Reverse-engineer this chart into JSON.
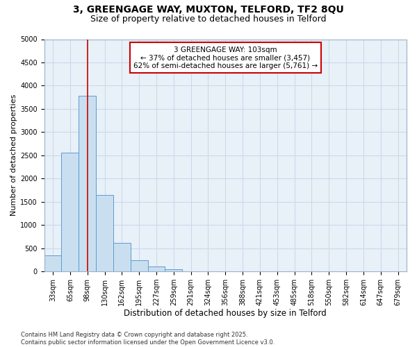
{
  "title1": "3, GREENGAGE WAY, MUXTON, TELFORD, TF2 8QU",
  "title2": "Size of property relative to detached houses in Telford",
  "xlabel": "Distribution of detached houses by size in Telford",
  "ylabel": "Number of detached properties",
  "categories": [
    "33sqm",
    "65sqm",
    "98sqm",
    "130sqm",
    "162sqm",
    "195sqm",
    "227sqm",
    "259sqm",
    "291sqm",
    "324sqm",
    "356sqm",
    "388sqm",
    "421sqm",
    "453sqm",
    "485sqm",
    "518sqm",
    "550sqm",
    "582sqm",
    "614sqm",
    "647sqm",
    "679sqm"
  ],
  "values": [
    350,
    2550,
    3780,
    1650,
    620,
    245,
    100,
    50,
    0,
    0,
    0,
    0,
    0,
    0,
    0,
    0,
    0,
    0,
    0,
    0,
    0
  ],
  "bar_color": "#c9dff0",
  "bar_edge_color": "#5b9bd5",
  "grid_color": "#c8d8ea",
  "background_color": "#e8f0f8",
  "red_line_x": 2.0,
  "annotation_text": "3 GREENGAGE WAY: 103sqm\n← 37% of detached houses are smaller (3,457)\n62% of semi-detached houses are larger (5,761) →",
  "annotation_box_color": "#ffffff",
  "annotation_edge_color": "#cc0000",
  "ylim": [
    0,
    5000
  ],
  "yticks": [
    0,
    500,
    1000,
    1500,
    2000,
    2500,
    3000,
    3500,
    4000,
    4500,
    5000
  ],
  "footnote": "Contains HM Land Registry data © Crown copyright and database right 2025.\nContains public sector information licensed under the Open Government Licence v3.0.",
  "title1_fontsize": 10,
  "title2_fontsize": 9,
  "xlabel_fontsize": 8.5,
  "ylabel_fontsize": 8,
  "tick_fontsize": 7,
  "annot_fontsize": 7.5,
  "footnote_fontsize": 6
}
